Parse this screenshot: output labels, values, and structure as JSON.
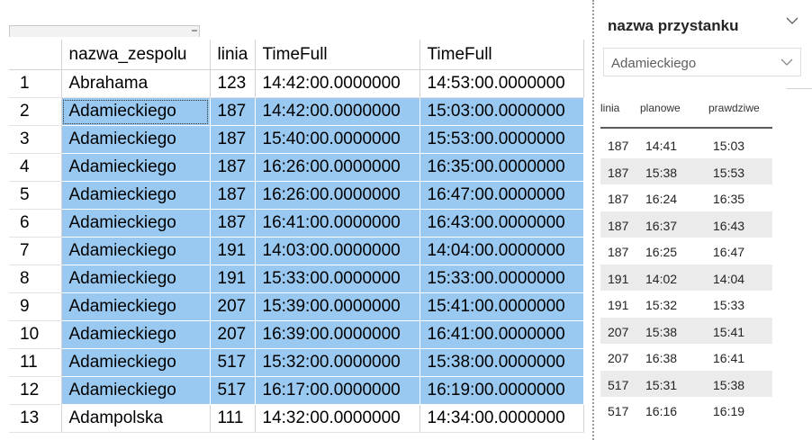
{
  "grid": {
    "columns": [
      "",
      "nazwa_zespolu",
      "linia",
      "TimeFull",
      "TimeFull"
    ],
    "rows": [
      {
        "num": "1",
        "name": "Abrahama",
        "linia": "123",
        "t1": "14:42:00.0000000",
        "t2": "14:53:00.0000000"
      },
      {
        "num": "2",
        "name": "Adamieckiego",
        "linia": "187",
        "t1": "14:42:00.0000000",
        "t2": "15:03:00.0000000"
      },
      {
        "num": "3",
        "name": "Adamieckiego",
        "linia": "187",
        "t1": "15:40:00.0000000",
        "t2": "15:53:00.0000000"
      },
      {
        "num": "4",
        "name": "Adamieckiego",
        "linia": "187",
        "t1": "16:26:00.0000000",
        "t2": "16:35:00.0000000"
      },
      {
        "num": "5",
        "name": "Adamieckiego",
        "linia": "187",
        "t1": "16:26:00.0000000",
        "t2": "16:47:00.0000000"
      },
      {
        "num": "6",
        "name": "Adamieckiego",
        "linia": "187",
        "t1": "16:41:00.0000000",
        "t2": "16:43:00.0000000"
      },
      {
        "num": "7",
        "name": "Adamieckiego",
        "linia": "191",
        "t1": "14:03:00.0000000",
        "t2": "14:04:00.0000000"
      },
      {
        "num": "8",
        "name": "Adamieckiego",
        "linia": "191",
        "t1": "15:33:00.0000000",
        "t2": "15:33:00.0000000"
      },
      {
        "num": "9",
        "name": "Adamieckiego",
        "linia": "207",
        "t1": "15:39:00.0000000",
        "t2": "15:41:00.0000000"
      },
      {
        "num": "10",
        "name": "Adamieckiego",
        "linia": "207",
        "t1": "16:39:00.0000000",
        "t2": "16:41:00.0000000"
      },
      {
        "num": "11",
        "name": "Adamieckiego",
        "linia": "517",
        "t1": "15:32:00.0000000",
        "t2": "15:38:00.0000000"
      },
      {
        "num": "12",
        "name": "Adamieckiego",
        "linia": "517",
        "t1": "16:17:00.0000000",
        "t2": "16:19:00.0000000"
      },
      {
        "num": "13",
        "name": "Adampolska",
        "linia": "111",
        "t1": "14:32:00.0000000",
        "t2": "14:34:00.0000000"
      }
    ],
    "selected_rows": [
      2,
      3,
      4,
      5,
      6,
      7,
      8,
      9,
      10,
      11,
      12
    ],
    "selection_color": "#99c9f1"
  },
  "slicer": {
    "title": "nazwa przystanku",
    "selected_value": "Adamieckiego",
    "chevron_icon": "chevron-down-icon"
  },
  "mini_table": {
    "headers": [
      "linia",
      "planowe",
      "prawdziwe"
    ],
    "rows": [
      [
        "187",
        "14:41",
        "15:03"
      ],
      [
        "187",
        "15:38",
        "15:53"
      ],
      [
        "187",
        "16:24",
        "16:35"
      ],
      [
        "187",
        "16:37",
        "16:43"
      ],
      [
        "187",
        "16:25",
        "16:47"
      ],
      [
        "191",
        "14:02",
        "14:04"
      ],
      [
        "191",
        "15:32",
        "15:33"
      ],
      [
        "207",
        "15:38",
        "15:41"
      ],
      [
        "207",
        "16:38",
        "16:41"
      ],
      [
        "517",
        "15:31",
        "15:38"
      ],
      [
        "517",
        "16:16",
        "16:19"
      ]
    ],
    "alt_row_color": "#ebebeb"
  }
}
